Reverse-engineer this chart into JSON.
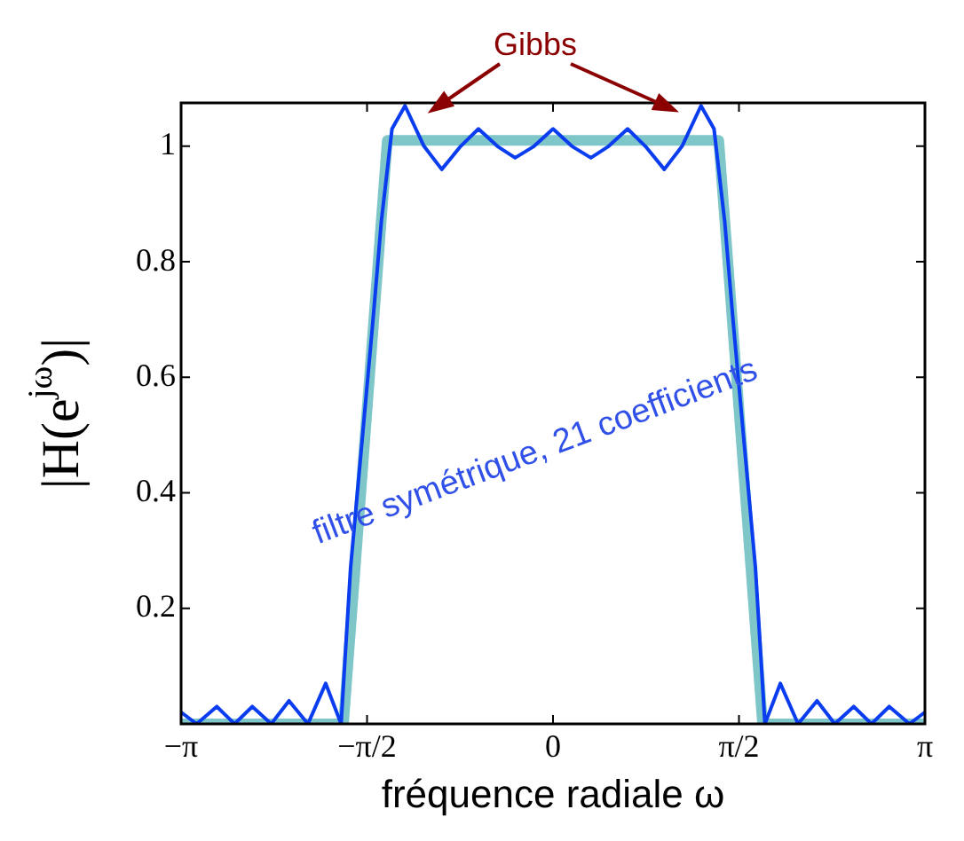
{
  "chart_data": {
    "type": "line",
    "xlabel": "fréquence radiale ω",
    "ylabel": "|H(e$^{jω}$)|",
    "annotations": [
      "Gibbs",
      "filtre symétrique, 21 coefficients"
    ],
    "xlim": [
      -3.1416,
      3.1416
    ],
    "xticks": [
      {
        "value": -3.1416,
        "label": "−π"
      },
      {
        "value": -1.5708,
        "label": "−π/2"
      },
      0,
      {
        "value": 1.5708,
        "label": "π/2"
      },
      {
        "value": 3.1416,
        "label": "π"
      }
    ],
    "ylim": [
      0,
      1.075
    ],
    "yticks": [
      0.2,
      0.4,
      0.6,
      0.8,
      1
    ],
    "grid": false,
    "legend": false,
    "marker": "none",
    "line_style": "solid",
    "series": [
      {
        "color": "#7fc6c9",
        "x": [
          -3.1416,
          -1.77,
          -1.4,
          1.4,
          1.77,
          3.1416
        ],
        "values": [
          0,
          0,
          1.01,
          1.01,
          0,
          0
        ]
      },
      {
        "color": "#0a3cf0",
        "x": [
          -3.14,
          -3.01,
          -2.84,
          -2.69,
          -2.54,
          -2.38,
          -2.23,
          -2.07,
          -1.92,
          -1.79,
          -1.71,
          -1.52,
          -1.45,
          -1.36,
          -1.25,
          -1.09,
          -0.94,
          -0.78,
          -0.63,
          -0.47,
          -0.32,
          -0.16,
          0,
          0.16,
          0.32,
          0.47,
          0.63,
          0.78,
          0.94,
          1.09,
          1.25,
          1.36,
          1.45,
          1.52,
          1.71,
          1.79,
          1.92,
          2.07,
          2.23,
          2.38,
          2.54,
          2.69,
          2.84,
          3.01,
          3.14
        ],
        "values": [
          0.02,
          0,
          0.03,
          0,
          0.03,
          0,
          0.04,
          0,
          0.07,
          0,
          0.27,
          0.7,
          0.87,
          1.03,
          1.07,
          1,
          0.96,
          1,
          1.03,
          1,
          0.98,
          1,
          1.03,
          1,
          0.98,
          1,
          1.03,
          1,
          0.96,
          1,
          1.07,
          1.03,
          0.87,
          0.7,
          0.27,
          0,
          0.07,
          0,
          0.04,
          0,
          0.03,
          0,
          0.03,
          0,
          0.02
        ]
      }
    ]
  }
}
